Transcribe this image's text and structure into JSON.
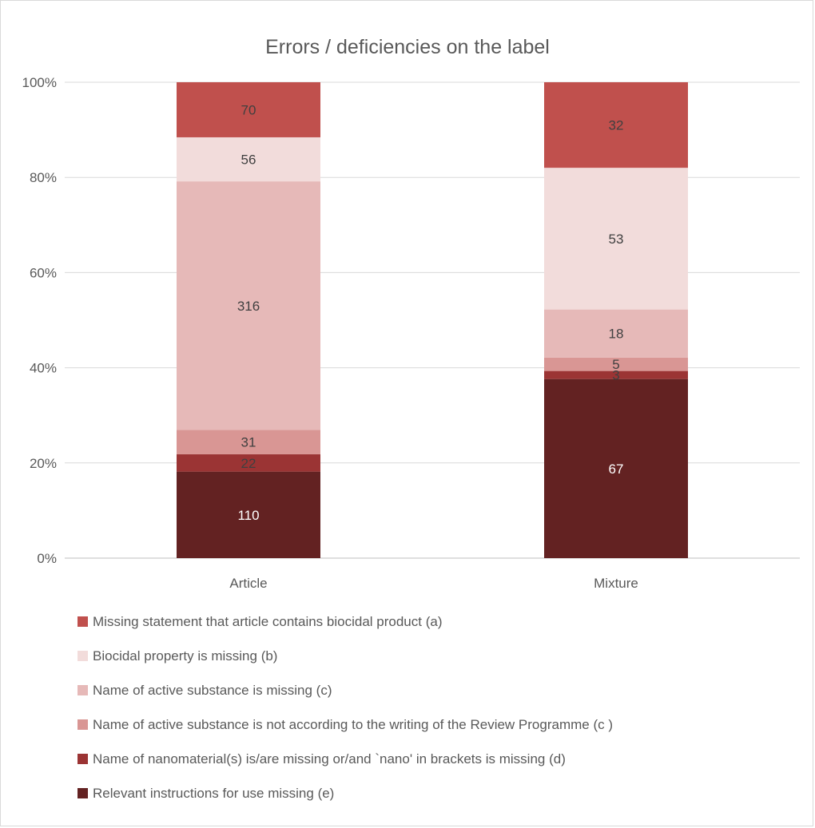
{
  "chart_data": {
    "type": "bar",
    "stacked": "percent",
    "title": "Errors / deficiencies on the label",
    "xlabel": "",
    "ylabel": "",
    "categories": [
      "Article",
      "Mixture"
    ],
    "ylim": [
      0,
      100
    ],
    "yticks": [
      "0%",
      "20%",
      "40%",
      "60%",
      "80%",
      "100%"
    ],
    "grid": true,
    "legend_position": "bottom",
    "series": [
      {
        "name": "Relevant instructions for use missing (e)",
        "values": [
          110,
          67
        ],
        "color": "#632222",
        "label_color": "#ffffff"
      },
      {
        "name": "Name of nanomaterial(s) is/are missing or/and `nano' in brackets is missing (d)",
        "values": [
          22,
          3
        ],
        "color": "#9b3434",
        "label_color": "#404040"
      },
      {
        "name": "Name of active substance is not according to the writing of the Review Programme (c )",
        "values": [
          31,
          5
        ],
        "color": "#d99694",
        "label_color": "#404040"
      },
      {
        "name": "Name of active substance is missing (c)",
        "values": [
          316,
          18
        ],
        "color": "#e6b9b8",
        "label_color": "#404040"
      },
      {
        "name": "Biocidal property is missing (b)",
        "values": [
          56,
          53
        ],
        "color": "#f2dcdb",
        "label_color": "#404040"
      },
      {
        "name": "Missing statement that article contains biocidal product (a)",
        "values": [
          70,
          32
        ],
        "color": "#c0504d",
        "label_color": "#404040"
      }
    ]
  }
}
